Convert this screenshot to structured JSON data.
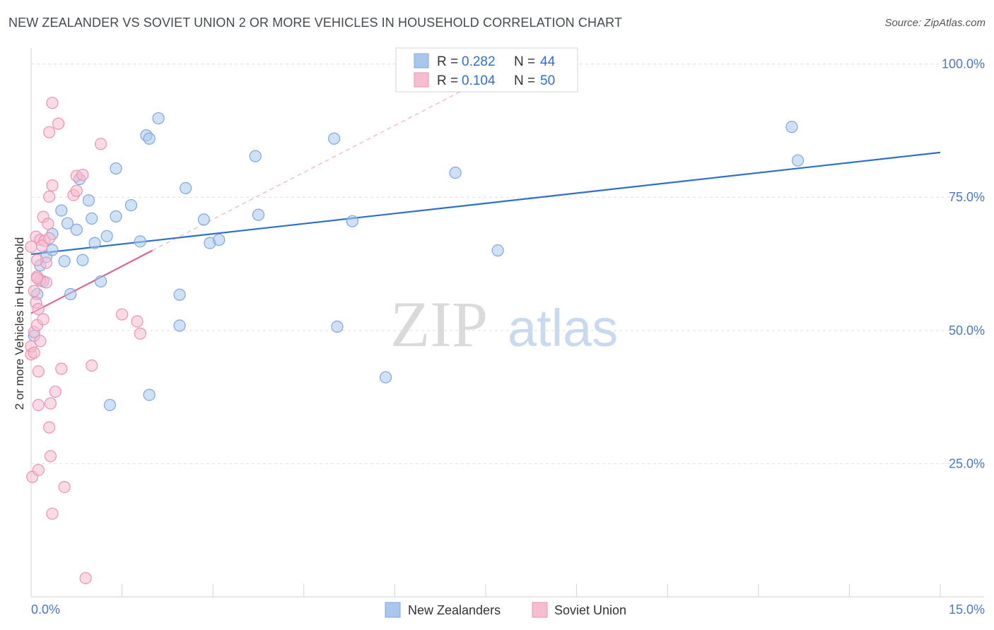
{
  "chart_data": {
    "type": "scatter",
    "title": "NEW ZEALANDER VS SOVIET UNION 2 OR MORE VEHICLES IN HOUSEHOLD CORRELATION CHART",
    "source": "Source: ZipAtlas.com",
    "xlabel": "",
    "ylabel": "2 or more Vehicles in Household",
    "xlim": [
      0,
      15
    ],
    "ylim": [
      0,
      103
    ],
    "x_tick_labels": [
      {
        "value": 0,
        "label": "0.0%"
      },
      {
        "value": 15,
        "label": "15.0%"
      }
    ],
    "y_tick_labels": [
      {
        "value": 25,
        "label": "25.0%"
      },
      {
        "value": 50,
        "label": "50.0%"
      },
      {
        "value": 75,
        "label": "75.0%"
      },
      {
        "value": 100,
        "label": "100.0%"
      }
    ],
    "grid": true,
    "watermark": {
      "zip": "ZIP",
      "atlas": "atlas"
    },
    "legend": {
      "r_label": "R =",
      "n_label": "N =",
      "entries": [
        {
          "name": "New Zealanders",
          "r": "0.282",
          "n": "44"
        },
        {
          "name": "Soviet Union",
          "r": "0.104",
          "n": "50"
        }
      ]
    },
    "series": [
      {
        "name": "New Zealanders",
        "color": "#a9c7ec",
        "stroke": "#7ea8dc",
        "line_color": "#2f6fcc",
        "trend": {
          "x": [
            0,
            15
          ],
          "y": [
            64.3,
            83.4
          ]
        },
        "points": [
          [
            0.05,
            49.0
          ],
          [
            0.1,
            56.8
          ],
          [
            0.15,
            62.2
          ],
          [
            0.2,
            59.2
          ],
          [
            0.25,
            63.8
          ],
          [
            0.35,
            65.1
          ],
          [
            0.35,
            68.1
          ],
          [
            0.5,
            72.5
          ],
          [
            0.55,
            63.0
          ],
          [
            0.6,
            70.1
          ],
          [
            0.65,
            56.8
          ],
          [
            0.75,
            68.9
          ],
          [
            0.8,
            78.4
          ],
          [
            0.85,
            63.2
          ],
          [
            0.95,
            74.4
          ],
          [
            1.0,
            71.0
          ],
          [
            1.05,
            66.4
          ],
          [
            1.15,
            59.2
          ],
          [
            1.25,
            67.7
          ],
          [
            1.3,
            36.0
          ],
          [
            1.4,
            71.4
          ],
          [
            1.4,
            80.4
          ],
          [
            1.65,
            73.5
          ],
          [
            1.8,
            66.7
          ],
          [
            1.9,
            86.6
          ],
          [
            1.95,
            86.0
          ],
          [
            1.95,
            37.9
          ],
          [
            2.1,
            89.8
          ],
          [
            2.45,
            56.7
          ],
          [
            2.45,
            50.9
          ],
          [
            2.55,
            76.7
          ],
          [
            2.85,
            70.8
          ],
          [
            2.95,
            66.4
          ],
          [
            3.1,
            67.0
          ],
          [
            3.7,
            82.7
          ],
          [
            3.75,
            71.7
          ],
          [
            5.0,
            86.0
          ],
          [
            5.05,
            50.7
          ],
          [
            5.3,
            70.5
          ],
          [
            5.85,
            41.2
          ],
          [
            7.0,
            79.6
          ],
          [
            7.7,
            65.0
          ],
          [
            12.55,
            88.2
          ],
          [
            12.65,
            81.9
          ]
        ]
      },
      {
        "name": "Soviet Union",
        "color": "#f6bcd0",
        "stroke": "#eb93b0",
        "line_color": "#e0628e",
        "trend": {
          "x": [
            0,
            2.0
          ],
          "y": [
            53.2,
            65.0
          ]
        },
        "trend_ext": {
          "x": [
            2.0,
            7.2
          ],
          "y": [
            65.0,
            95.5
          ]
        },
        "points": [
          [
            0.0,
            65.7
          ],
          [
            0.0,
            45.5
          ],
          [
            0.0,
            47.0
          ],
          [
            0.02,
            22.5
          ],
          [
            0.05,
            49.7
          ],
          [
            0.08,
            55.2
          ],
          [
            0.08,
            67.6
          ],
          [
            0.1,
            60.1
          ],
          [
            0.1,
            51.0
          ],
          [
            0.12,
            42.3
          ],
          [
            0.12,
            36.0
          ],
          [
            0.12,
            23.8
          ],
          [
            0.15,
            59.4
          ],
          [
            0.15,
            67.0
          ],
          [
            0.2,
            71.3
          ],
          [
            0.22,
            66.8
          ],
          [
            0.25,
            59.0
          ],
          [
            0.28,
            70.0
          ],
          [
            0.3,
            87.2
          ],
          [
            0.3,
            75.1
          ],
          [
            0.3,
            31.8
          ],
          [
            0.32,
            26.4
          ],
          [
            0.32,
            36.3
          ],
          [
            0.35,
            92.7
          ],
          [
            0.35,
            77.2
          ],
          [
            0.35,
            15.6
          ],
          [
            0.4,
            38.5
          ],
          [
            0.45,
            88.8
          ],
          [
            0.5,
            42.8
          ],
          [
            0.55,
            20.6
          ],
          [
            0.7,
            75.4
          ],
          [
            0.75,
            79.0
          ],
          [
            0.75,
            76.2
          ],
          [
            0.85,
            79.2
          ],
          [
            0.9,
            3.5
          ],
          [
            1.0,
            43.4
          ],
          [
            1.15,
            85.0
          ],
          [
            1.5,
            53.0
          ],
          [
            1.75,
            51.7
          ],
          [
            1.8,
            49.4
          ],
          [
            0.05,
            45.8
          ],
          [
            0.1,
            59.8
          ],
          [
            0.18,
            65.9
          ],
          [
            0.25,
            62.7
          ],
          [
            0.15,
            48.0
          ],
          [
            0.05,
            57.4
          ],
          [
            0.12,
            54.0
          ],
          [
            0.3,
            67.3
          ],
          [
            0.2,
            52.1
          ],
          [
            0.1,
            63.2
          ]
        ]
      }
    ]
  }
}
